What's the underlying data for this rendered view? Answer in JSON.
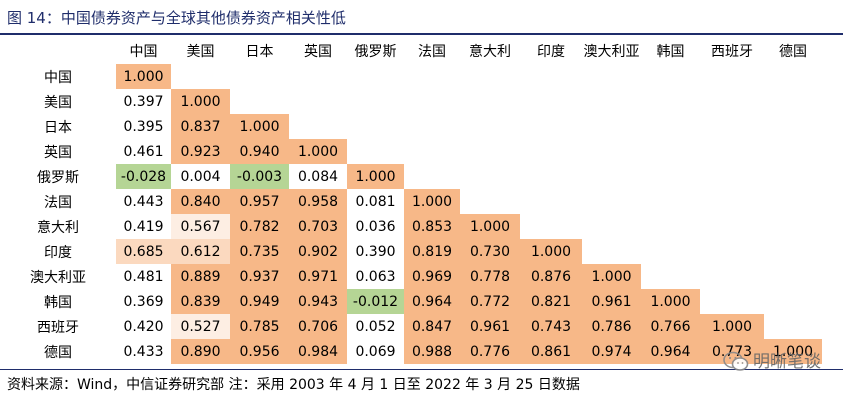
{
  "title": "图 14：中国债券资产与全球其他债券资产相关性低",
  "footer": "资料来源：Wind，中信证券研究部   注：采用 2003 年 4 月 1 日至 2022 年 3 月 25 日数据",
  "watermark": "明晰笔谈",
  "colors": {
    "title": "#1f2d6b",
    "high": "#f7b888",
    "mid": "#fbd9bf",
    "low": "#fdeee3",
    "negative": "#b5d595",
    "white": "#ffffff"
  },
  "chart_data": {
    "type": "heatmap",
    "title": "图 14：中国债券资产与全球其他债券资产相关性低",
    "columns": [
      "中国",
      "美国",
      "日本",
      "英国",
      "俄罗斯",
      "法国",
      "意大利",
      "印度",
      "澳大利亚",
      "韩国",
      "西班牙",
      "德国"
    ],
    "rows": [
      "中国",
      "美国",
      "日本",
      "英国",
      "俄罗斯",
      "法国",
      "意大利",
      "印度",
      "澳大利亚",
      "韩国",
      "西班牙",
      "德国"
    ],
    "values": [
      [
        "1.000"
      ],
      [
        "0.397",
        "1.000"
      ],
      [
        "0.395",
        "0.837",
        "1.000"
      ],
      [
        "0.461",
        "0.923",
        "0.940",
        "1.000"
      ],
      [
        "-0.028",
        "0.004",
        "-0.003",
        "0.084",
        "1.000"
      ],
      [
        "0.443",
        "0.840",
        "0.957",
        "0.958",
        "0.081",
        "1.000"
      ],
      [
        "0.419",
        "0.567",
        "0.782",
        "0.703",
        "0.036",
        "0.853",
        "1.000"
      ],
      [
        "0.685",
        "0.612",
        "0.735",
        "0.902",
        "0.390",
        "0.819",
        "0.730",
        "1.000"
      ],
      [
        "0.481",
        "0.889",
        "0.937",
        "0.971",
        "0.063",
        "0.969",
        "0.778",
        "0.876",
        "1.000"
      ],
      [
        "0.369",
        "0.839",
        "0.949",
        "0.943",
        "-0.012",
        "0.964",
        "0.772",
        "0.821",
        "0.961",
        "1.000"
      ],
      [
        "0.420",
        "0.527",
        "0.785",
        "0.706",
        "0.052",
        "0.847",
        "0.961",
        "0.743",
        "0.786",
        "0.766",
        "1.000"
      ],
      [
        "0.433",
        "0.890",
        "0.956",
        "0.984",
        "0.069",
        "0.988",
        "0.776",
        "0.861",
        "0.974",
        "0.964",
        "0.773",
        "1.000"
      ]
    ]
  }
}
